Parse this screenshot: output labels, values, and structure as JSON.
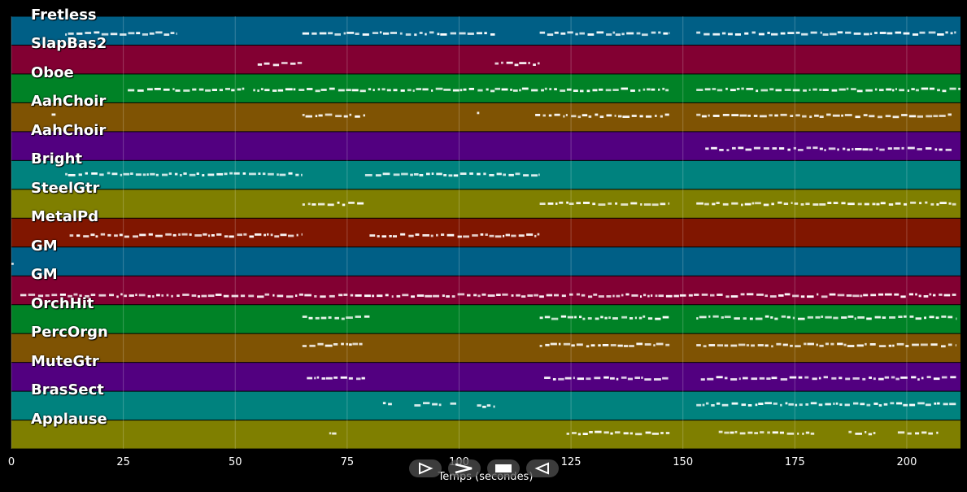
{
  "app": {
    "xaxis_label": "Temps (secondes)"
  },
  "controls": [
    {
      "name": "play-button",
      "icon": "play-icon"
    },
    {
      "name": "forward-button",
      "icon": "chevron-right-icon"
    },
    {
      "name": "stop-button",
      "icon": "stop-icon"
    },
    {
      "name": "rewind-button",
      "icon": "rewind-icon"
    }
  ],
  "axis": {
    "xlim": [
      0,
      212
    ],
    "ticks": [
      "0",
      "25",
      "50",
      "75",
      "100",
      "125",
      "150",
      "175",
      "200"
    ]
  },
  "tracks": [
    {
      "name": "Fretless",
      "color": "#005f86",
      "segments": [
        [
          12,
          37,
          0.6
        ],
        [
          65,
          108,
          0.6
        ],
        [
          118,
          147,
          0.6
        ],
        [
          153,
          211,
          0.6
        ]
      ]
    },
    {
      "name": "SlapBas2",
      "color": "#820032",
      "segments": [
        [
          55,
          65,
          0.65
        ],
        [
          108,
          118,
          0.65
        ]
      ]
    },
    {
      "name": "Oboe",
      "color": "#008226",
      "segments": [
        [
          26,
          52,
          0.55
        ],
        [
          54,
          108,
          0.55
        ],
        [
          108,
          147,
          0.55
        ],
        [
          153,
          212,
          0.55
        ]
      ]
    },
    {
      "name": "AahChoir",
      "color": "#7f5303",
      "segments": [
        [
          9,
          10,
          0.4
        ],
        [
          65,
          79,
          0.45
        ],
        [
          104,
          104.5,
          0.35
        ],
        [
          117,
          147,
          0.45
        ],
        [
          153,
          210,
          0.45
        ]
      ]
    },
    {
      "name": "AahChoir",
      "color": "#520080",
      "segments": [
        [
          155,
          210,
          0.6
        ]
      ]
    },
    {
      "name": "Bright",
      "color": "#00827e",
      "segments": [
        [
          12,
          65,
          0.48
        ],
        [
          79,
          118,
          0.48
        ]
      ]
    },
    {
      "name": "SteelGtr",
      "color": "#7f7f00",
      "segments": [
        [
          65,
          79,
          0.5
        ],
        [
          118,
          147,
          0.5
        ],
        [
          153,
          211,
          0.5
        ]
      ]
    },
    {
      "name": "MetalPd",
      "color": "#801600",
      "segments": [
        [
          13,
          65,
          0.6
        ],
        [
          80,
          118,
          0.6
        ]
      ]
    },
    {
      "name": "GM",
      "color": "#005f86",
      "segments": [
        [
          0,
          0.5,
          0.6
        ]
      ]
    },
    {
      "name": "GM",
      "color": "#820032",
      "segments": [
        [
          2,
          211,
          0.68
        ]
      ]
    },
    {
      "name": "OrchHit",
      "color": "#008226",
      "segments": [
        [
          65,
          80,
          0.45
        ],
        [
          118,
          147,
          0.45
        ],
        [
          153,
          211,
          0.45
        ]
      ]
    },
    {
      "name": "PercOrgn",
      "color": "#7f5303",
      "segments": [
        [
          65,
          79,
          0.4
        ],
        [
          118,
          147,
          0.4
        ],
        [
          153,
          211,
          0.4
        ]
      ]
    },
    {
      "name": "MuteGtr",
      "color": "#520080",
      "segments": [
        [
          66,
          79,
          0.55
        ],
        [
          119,
          147,
          0.55
        ],
        [
          154,
          211,
          0.55
        ]
      ]
    },
    {
      "name": "BrasSect",
      "color": "#00827e",
      "segments": [
        [
          83,
          85,
          0.45
        ],
        [
          90,
          96,
          0.45
        ],
        [
          98,
          100,
          0.45
        ],
        [
          104,
          108,
          0.5
        ],
        [
          153,
          211,
          0.45
        ]
      ]
    },
    {
      "name": "Applause",
      "color": "#7f7f00",
      "segments": [
        [
          71,
          73,
          0.45
        ],
        [
          124,
          147,
          0.45
        ],
        [
          158,
          180,
          0.45
        ],
        [
          187,
          193,
          0.45
        ],
        [
          198,
          207,
          0.45
        ]
      ]
    }
  ]
}
